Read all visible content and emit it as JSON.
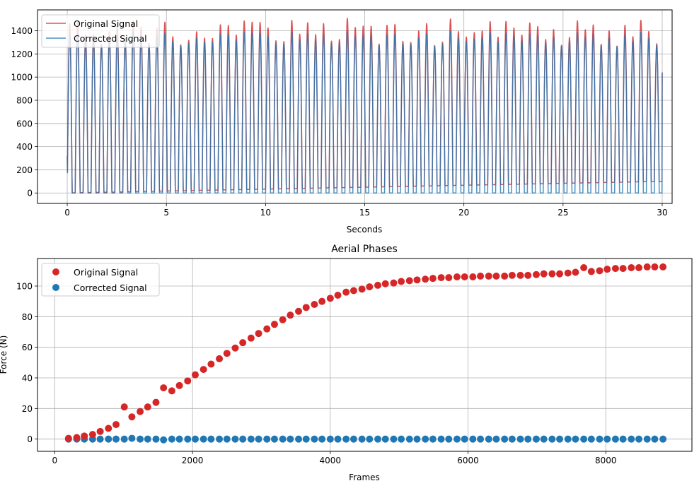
{
  "chart_data": [
    {
      "type": "line",
      "title": "",
      "xlabel": "Seconds",
      "ylabel": "",
      "xlim": [
        -1.5,
        30.5
      ],
      "ylim": [
        -90,
        1580
      ],
      "xticks": [
        0,
        5,
        10,
        15,
        20,
        25,
        30
      ],
      "yticks": [
        0,
        200,
        400,
        600,
        800,
        1000,
        1200,
        1400
      ],
      "grid": true,
      "legend": "top-left",
      "signal": {
        "start": 0,
        "end": 30,
        "cycles": 75,
        "duty": 0.62
      },
      "series": [
        {
          "name": "Original Signal",
          "color": "#d62728",
          "peak_min": 1260,
          "peak_max": 1510,
          "trough_start": 0,
          "trough_end": 100
        },
        {
          "name": "Corrected Signal",
          "color": "#1f77b4",
          "peak_min": 1260,
          "peak_max": 1400,
          "trough_start": 0,
          "trough_end": 0
        }
      ]
    },
    {
      "type": "scatter",
      "title": "Aerial Phases",
      "xlabel": "Frames",
      "ylabel": "Force (N)",
      "xlim": [
        -250,
        9250
      ],
      "ylim": [
        -8,
        118
      ],
      "xticks": [
        0,
        2000,
        4000,
        6000,
        8000
      ],
      "yticks": [
        0,
        20,
        40,
        60,
        80,
        100
      ],
      "grid": true,
      "legend": "top-left",
      "series": [
        {
          "name": "Original Signal",
          "color": "#d62728",
          "x": [
            200,
            320,
            430,
            550,
            660,
            780,
            890,
            1010,
            1120,
            1240,
            1350,
            1470,
            1580,
            1700,
            1810,
            1930,
            2040,
            2160,
            2270,
            2390,
            2500,
            2620,
            2730,
            2850,
            2960,
            3080,
            3190,
            3310,
            3420,
            3540,
            3650,
            3770,
            3880,
            4000,
            4110,
            4230,
            4340,
            4460,
            4570,
            4690,
            4800,
            4920,
            5030,
            5150,
            5260,
            5380,
            5490,
            5610,
            5720,
            5840,
            5950,
            6070,
            6180,
            6300,
            6410,
            6530,
            6640,
            6760,
            6870,
            6990,
            7100,
            7220,
            7330,
            7450,
            7560,
            7680,
            7790,
            7910,
            8020,
            8140,
            8250,
            8370,
            8480,
            8600,
            8710,
            8830
          ],
          "y": [
            0.5,
            1,
            2,
            3,
            5,
            7,
            9.5,
            21,
            14.5,
            18,
            21,
            24,
            33.5,
            31.5,
            35,
            38,
            42,
            45.5,
            49,
            52.5,
            56,
            59.5,
            63,
            66,
            69,
            72,
            75,
            78,
            81,
            83.5,
            86,
            88,
            90,
            92,
            94,
            96,
            97,
            98,
            99.5,
            100.5,
            101.5,
            102,
            103,
            103.5,
            104,
            104.5,
            105,
            105.5,
            105.5,
            106,
            106,
            106,
            106.5,
            106.5,
            106.5,
            106.5,
            107,
            107,
            107,
            107.5,
            108,
            108,
            108,
            108.5,
            109,
            112,
            109.5,
            110,
            111,
            111.5,
            111.5,
            112,
            112,
            112.5,
            112.5,
            112.5
          ]
        },
        {
          "name": "Corrected Signal",
          "color": "#1f77b4",
          "x": [
            200,
            320,
            430,
            550,
            660,
            780,
            890,
            1010,
            1120,
            1240,
            1350,
            1470,
            1580,
            1700,
            1810,
            1930,
            2040,
            2160,
            2270,
            2390,
            2500,
            2620,
            2730,
            2850,
            2960,
            3080,
            3190,
            3310,
            3420,
            3540,
            3650,
            3770,
            3880,
            4000,
            4110,
            4230,
            4340,
            4460,
            4570,
            4690,
            4800,
            4920,
            5030,
            5150,
            5260,
            5380,
            5490,
            5610,
            5720,
            5840,
            5950,
            6070,
            6180,
            6300,
            6410,
            6530,
            6640,
            6760,
            6870,
            6990,
            7100,
            7220,
            7330,
            7450,
            7560,
            7680,
            7790,
            7910,
            8020,
            8140,
            8250,
            8370,
            8480,
            8600,
            8710,
            8830
          ],
          "y": [
            0,
            0,
            0,
            0,
            0,
            0,
            0,
            0,
            0.5,
            0,
            0,
            0,
            -0.5,
            0,
            0,
            0,
            0,
            0,
            0,
            0,
            0,
            0,
            0,
            0,
            0,
            0,
            0,
            0,
            0,
            0,
            0,
            0,
            0,
            0,
            0,
            0,
            0,
            0,
            0,
            0,
            0,
            0,
            0,
            0,
            0,
            0,
            0,
            0,
            0,
            0,
            0,
            0,
            0,
            0,
            0,
            0,
            0,
            0,
            0,
            0,
            0,
            0,
            0,
            0,
            0,
            0,
            0,
            0,
            0,
            0,
            0,
            0,
            0,
            0,
            0,
            0
          ]
        }
      ]
    }
  ]
}
